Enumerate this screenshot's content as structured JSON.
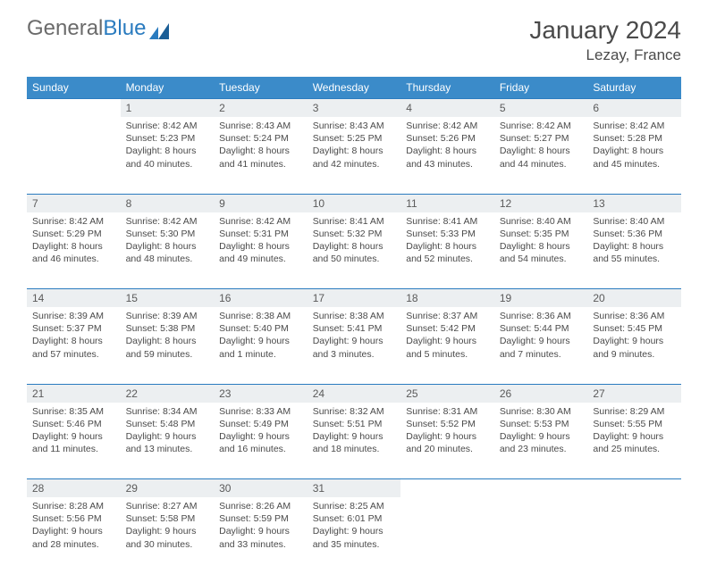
{
  "brand": {
    "part1": "General",
    "part2": "Blue"
  },
  "title": "January 2024",
  "location": "Lezay, France",
  "colors": {
    "header_bg": "#3b8bc9",
    "header_text": "#ffffff",
    "daynum_bg": "#eceff1",
    "daynum_border": "#2a7bbf",
    "body_text": "#4a4a4a",
    "logo_gray": "#6b6b6b",
    "logo_blue": "#2a7bbf"
  },
  "weekday_labels": [
    "Sunday",
    "Monday",
    "Tuesday",
    "Wednesday",
    "Thursday",
    "Friday",
    "Saturday"
  ],
  "weeks": [
    [
      null,
      {
        "n": "1",
        "sr": "8:42 AM",
        "ss": "5:23 PM",
        "dl": "8 hours and 40 minutes."
      },
      {
        "n": "2",
        "sr": "8:43 AM",
        "ss": "5:24 PM",
        "dl": "8 hours and 41 minutes."
      },
      {
        "n": "3",
        "sr": "8:43 AM",
        "ss": "5:25 PM",
        "dl": "8 hours and 42 minutes."
      },
      {
        "n": "4",
        "sr": "8:42 AM",
        "ss": "5:26 PM",
        "dl": "8 hours and 43 minutes."
      },
      {
        "n": "5",
        "sr": "8:42 AM",
        "ss": "5:27 PM",
        "dl": "8 hours and 44 minutes."
      },
      {
        "n": "6",
        "sr": "8:42 AM",
        "ss": "5:28 PM",
        "dl": "8 hours and 45 minutes."
      }
    ],
    [
      {
        "n": "7",
        "sr": "8:42 AM",
        "ss": "5:29 PM",
        "dl": "8 hours and 46 minutes."
      },
      {
        "n": "8",
        "sr": "8:42 AM",
        "ss": "5:30 PM",
        "dl": "8 hours and 48 minutes."
      },
      {
        "n": "9",
        "sr": "8:42 AM",
        "ss": "5:31 PM",
        "dl": "8 hours and 49 minutes."
      },
      {
        "n": "10",
        "sr": "8:41 AM",
        "ss": "5:32 PM",
        "dl": "8 hours and 50 minutes."
      },
      {
        "n": "11",
        "sr": "8:41 AM",
        "ss": "5:33 PM",
        "dl": "8 hours and 52 minutes."
      },
      {
        "n": "12",
        "sr": "8:40 AM",
        "ss": "5:35 PM",
        "dl": "8 hours and 54 minutes."
      },
      {
        "n": "13",
        "sr": "8:40 AM",
        "ss": "5:36 PM",
        "dl": "8 hours and 55 minutes."
      }
    ],
    [
      {
        "n": "14",
        "sr": "8:39 AM",
        "ss": "5:37 PM",
        "dl": "8 hours and 57 minutes."
      },
      {
        "n": "15",
        "sr": "8:39 AM",
        "ss": "5:38 PM",
        "dl": "8 hours and 59 minutes."
      },
      {
        "n": "16",
        "sr": "8:38 AM",
        "ss": "5:40 PM",
        "dl": "9 hours and 1 minute."
      },
      {
        "n": "17",
        "sr": "8:38 AM",
        "ss": "5:41 PM",
        "dl": "9 hours and 3 minutes."
      },
      {
        "n": "18",
        "sr": "8:37 AM",
        "ss": "5:42 PM",
        "dl": "9 hours and 5 minutes."
      },
      {
        "n": "19",
        "sr": "8:36 AM",
        "ss": "5:44 PM",
        "dl": "9 hours and 7 minutes."
      },
      {
        "n": "20",
        "sr": "8:36 AM",
        "ss": "5:45 PM",
        "dl": "9 hours and 9 minutes."
      }
    ],
    [
      {
        "n": "21",
        "sr": "8:35 AM",
        "ss": "5:46 PM",
        "dl": "9 hours and 11 minutes."
      },
      {
        "n": "22",
        "sr": "8:34 AM",
        "ss": "5:48 PM",
        "dl": "9 hours and 13 minutes."
      },
      {
        "n": "23",
        "sr": "8:33 AM",
        "ss": "5:49 PM",
        "dl": "9 hours and 16 minutes."
      },
      {
        "n": "24",
        "sr": "8:32 AM",
        "ss": "5:51 PM",
        "dl": "9 hours and 18 minutes."
      },
      {
        "n": "25",
        "sr": "8:31 AM",
        "ss": "5:52 PM",
        "dl": "9 hours and 20 minutes."
      },
      {
        "n": "26",
        "sr": "8:30 AM",
        "ss": "5:53 PM",
        "dl": "9 hours and 23 minutes."
      },
      {
        "n": "27",
        "sr": "8:29 AM",
        "ss": "5:55 PM",
        "dl": "9 hours and 25 minutes."
      }
    ],
    [
      {
        "n": "28",
        "sr": "8:28 AM",
        "ss": "5:56 PM",
        "dl": "9 hours and 28 minutes."
      },
      {
        "n": "29",
        "sr": "8:27 AM",
        "ss": "5:58 PM",
        "dl": "9 hours and 30 minutes."
      },
      {
        "n": "30",
        "sr": "8:26 AM",
        "ss": "5:59 PM",
        "dl": "9 hours and 33 minutes."
      },
      {
        "n": "31",
        "sr": "8:25 AM",
        "ss": "6:01 PM",
        "dl": "9 hours and 35 minutes."
      },
      null,
      null,
      null
    ]
  ],
  "labels": {
    "sunrise": "Sunrise:",
    "sunset": "Sunset:",
    "daylight": "Daylight:"
  }
}
